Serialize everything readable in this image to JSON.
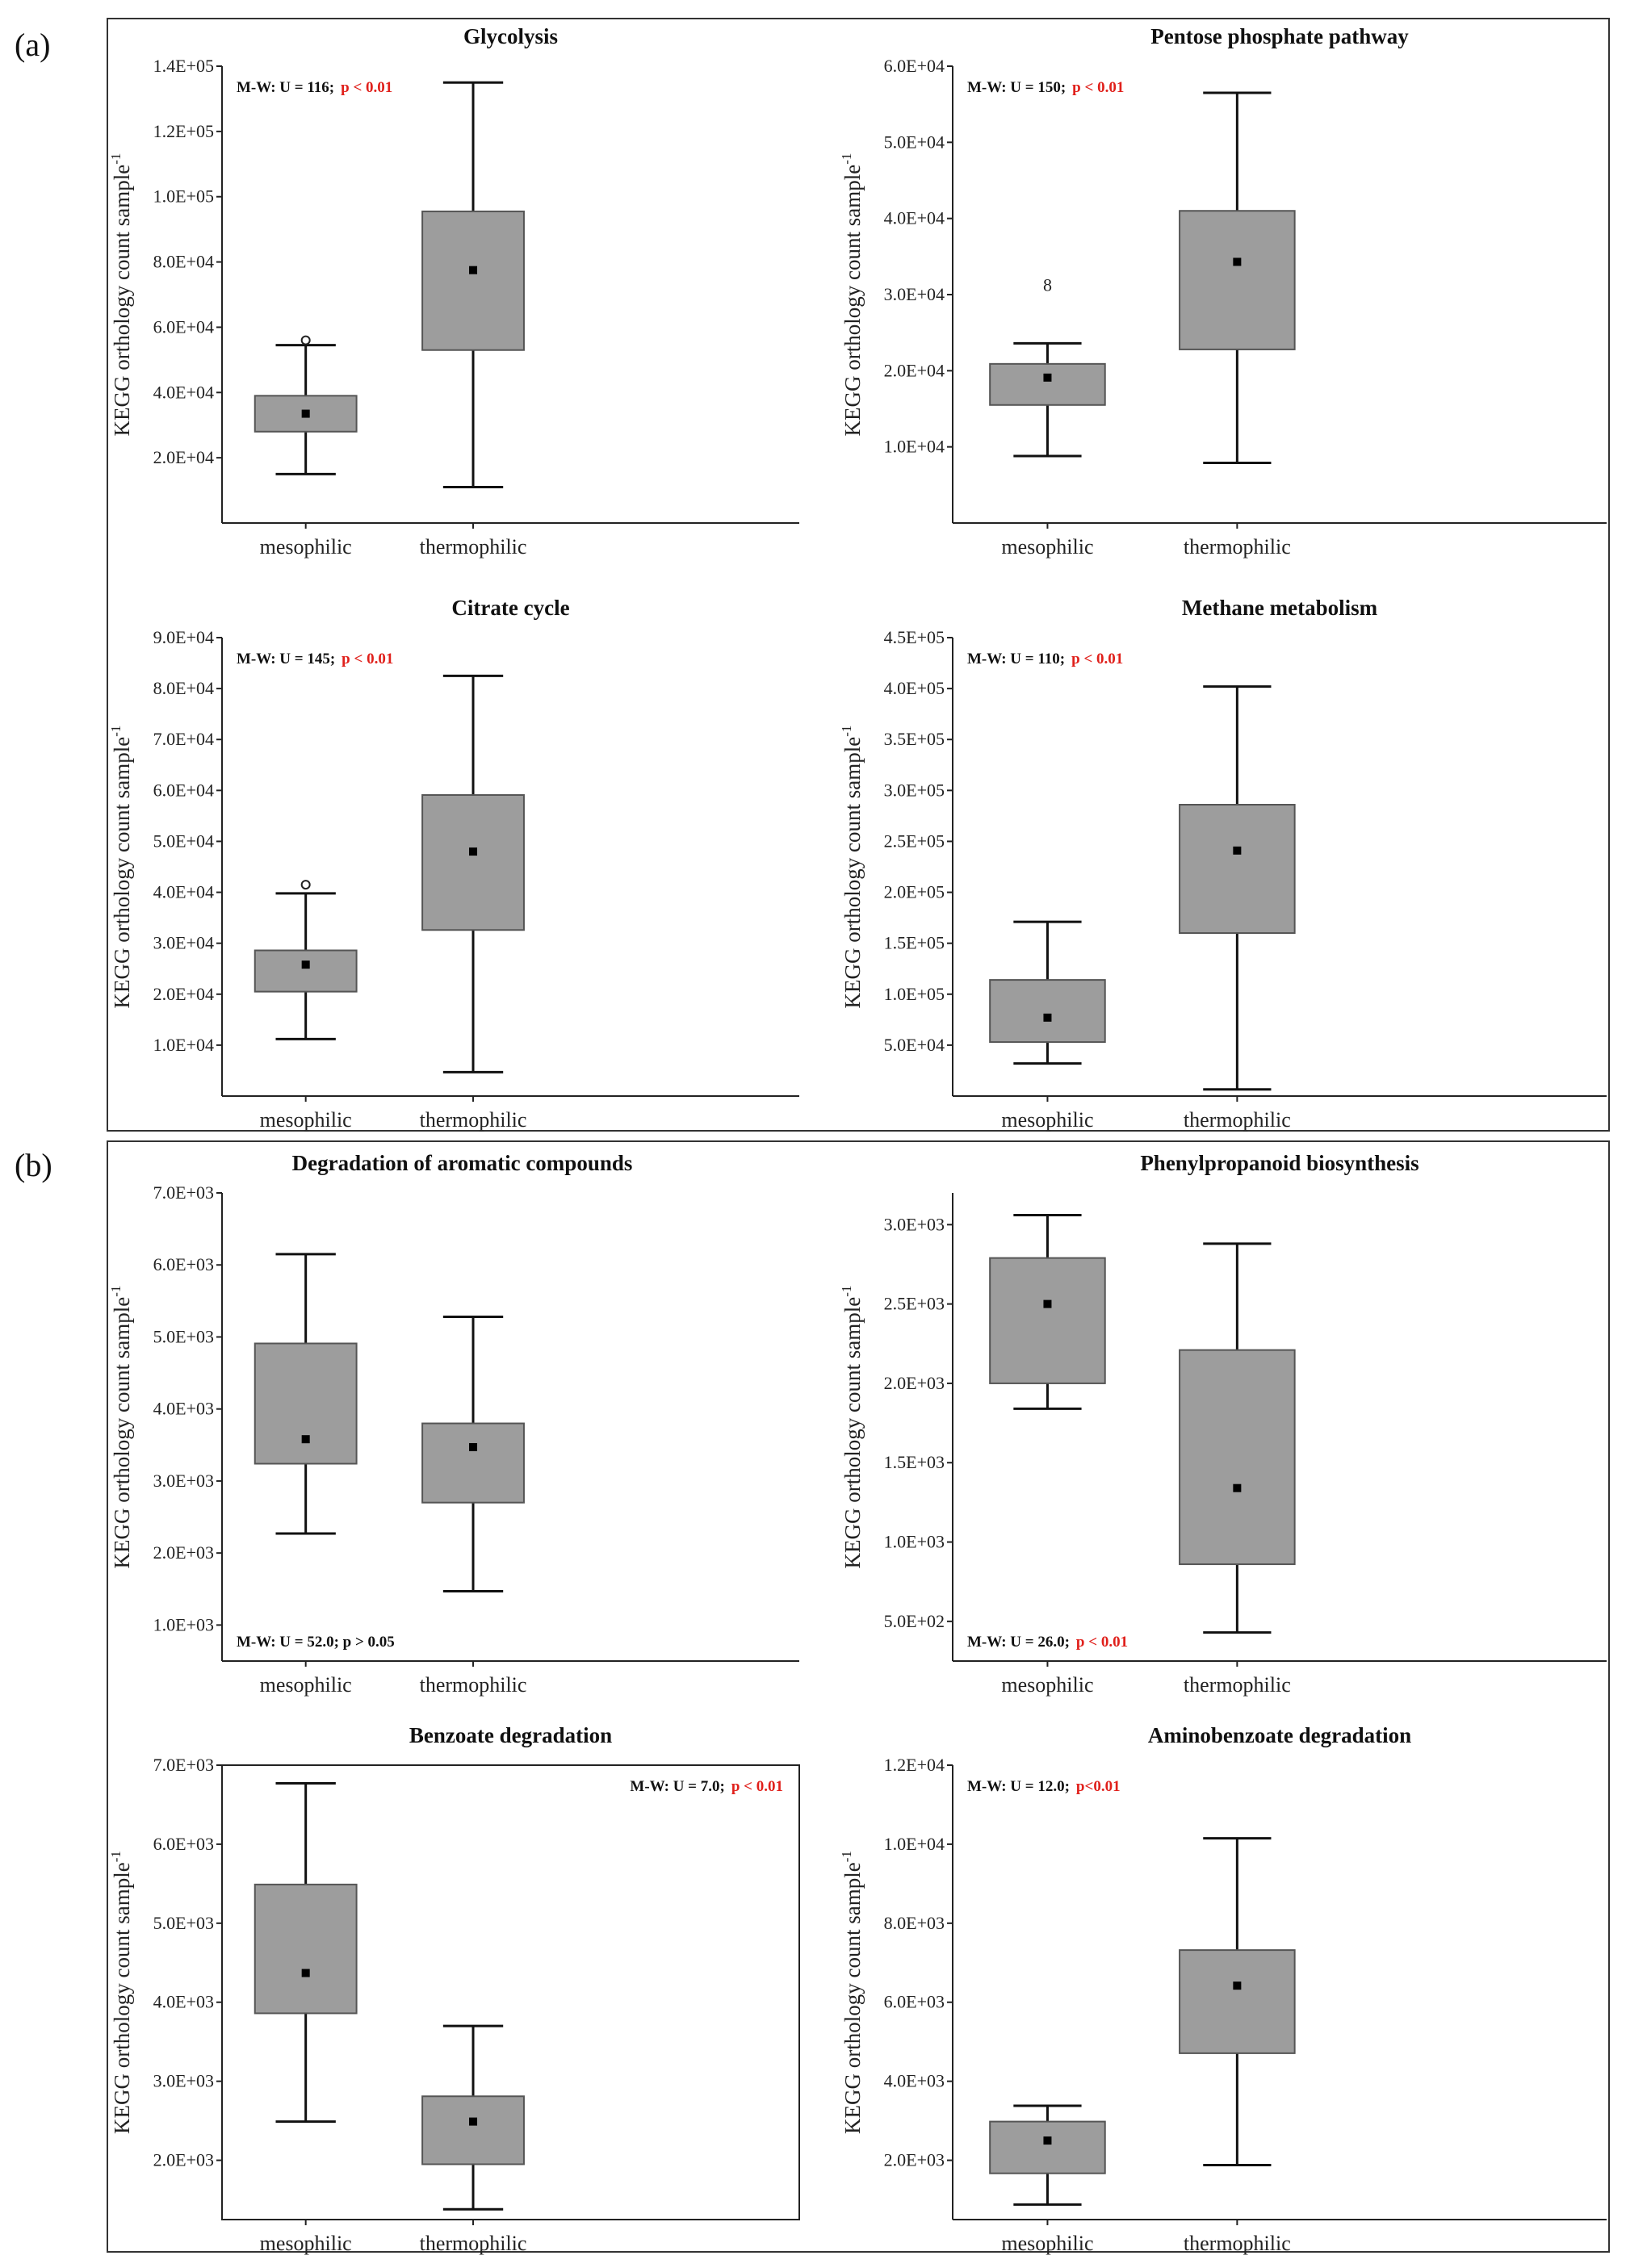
{
  "panel_labels": {
    "a": "(a)",
    "b": "(b)"
  },
  "chart_data": [
    {
      "type": "box",
      "panel": "a",
      "title": "Glycolysis",
      "ylabel": "KEGG orthology count sample",
      "ylabel_sup": "-1",
      "categories": [
        "mesophilic",
        "thermophilic"
      ],
      "ylim": [
        0,
        140000
      ],
      "yticks": [
        20000,
        40000,
        60000,
        80000,
        100000,
        120000,
        140000
      ],
      "ytick_labels": [
        "2.0E+04",
        "4.0E+04",
        "6.0E+04",
        "8.0E+04",
        "1.0E+05",
        "1.2E+05",
        "1.4E+05"
      ],
      "boxes": [
        {
          "min": 15000,
          "q1": 28000,
          "median": 33500,
          "q3": 39000,
          "max": 54500,
          "outliers": [
            56000
          ],
          "outlier_symbol": "o"
        },
        {
          "min": 11000,
          "q1": 53000,
          "median": 77500,
          "q3": 95500,
          "max": 135000,
          "outliers": []
        }
      ],
      "stat": {
        "test": "M-W: U = 116;",
        "p": "p < 0.01",
        "position": "top-left"
      }
    },
    {
      "type": "box",
      "panel": "a",
      "title": "Pentose phosphate pathway",
      "ylabel": "KEGG orthology count sample",
      "ylabel_sup": "-1",
      "categories": [
        "mesophilic",
        "thermophilic"
      ],
      "ylim": [
        0,
        60000
      ],
      "yticks": [
        10000,
        20000,
        30000,
        40000,
        50000,
        60000
      ],
      "ytick_labels": [
        "1.0E+04",
        "2.0E+04",
        "3.0E+04",
        "4.0E+04",
        "5.0E+04",
        "6.0E+04"
      ],
      "boxes": [
        {
          "min": 8800,
          "q1": 15500,
          "median": 19100,
          "q3": 20900,
          "max": 23600,
          "outliers": [
            31300
          ],
          "outlier_symbol": "8"
        },
        {
          "min": 7900,
          "q1": 22800,
          "median": 34300,
          "q3": 41000,
          "max": 56500,
          "outliers": []
        }
      ],
      "stat": {
        "test": "M-W: U =  150;",
        "p": "p < 0.01",
        "position": "top-left"
      }
    },
    {
      "type": "box",
      "panel": "a",
      "title": "Citrate cycle",
      "ylabel": "KEGG orthology count sample",
      "ylabel_sup": "-1",
      "categories": [
        "mesophilic",
        "thermophilic"
      ],
      "ylim": [
        0,
        90000
      ],
      "yticks": [
        10000,
        20000,
        30000,
        40000,
        50000,
        60000,
        70000,
        80000,
        90000
      ],
      "ytick_labels": [
        "1.0E+04",
        "2.0E+04",
        "3.0E+04",
        "4.0E+04",
        "5.0E+04",
        "6.0E+04",
        "7.0E+04",
        "8.0E+04",
        "9.0E+04"
      ],
      "boxes": [
        {
          "min": 11200,
          "q1": 20500,
          "median": 25800,
          "q3": 28600,
          "max": 39800,
          "outliers": [
            41500
          ],
          "outlier_symbol": "o"
        },
        {
          "min": 4700,
          "q1": 32600,
          "median": 48000,
          "q3": 59100,
          "max": 82500,
          "outliers": []
        }
      ],
      "stat": {
        "test": "M-W: U = 145;",
        "p": "p < 0.01",
        "position": "top-left"
      }
    },
    {
      "type": "box",
      "panel": "a",
      "title": "Methane metabolism",
      "ylabel": "KEGG orthology count sample",
      "ylabel_sup": "-1",
      "categories": [
        "mesophilic",
        "thermophilic"
      ],
      "ylim": [
        0,
        450000
      ],
      "yticks": [
        50000,
        100000,
        150000,
        200000,
        250000,
        300000,
        350000,
        400000,
        450000
      ],
      "ytick_labels": [
        "5.0E+04",
        "1.0E+05",
        "1.5E+05",
        "2.0E+05",
        "2.5E+05",
        "3.0E+05",
        "3.5E+05",
        "4.0E+05",
        "4.5E+05"
      ],
      "boxes": [
        {
          "min": 32000,
          "q1": 53000,
          "median": 77000,
          "q3": 114000,
          "max": 171000,
          "outliers": []
        },
        {
          "min": 6500,
          "q1": 160000,
          "median": 241000,
          "q3": 286000,
          "max": 402000,
          "outliers": []
        }
      ],
      "stat": {
        "test": "M-W: U =  110;",
        "p": "p < 0.01",
        "position": "top-left"
      }
    },
    {
      "type": "box",
      "panel": "b",
      "title": "Degradation of aromatic compounds",
      "ylabel": "KEGG orthology count sample",
      "ylabel_sup": "-1",
      "categories": [
        "mesophilic",
        "thermophilic"
      ],
      "ylim": [
        500,
        7000
      ],
      "yticks": [
        1000,
        2000,
        3000,
        4000,
        5000,
        6000,
        7000
      ],
      "ytick_labels": [
        "1.0E+03",
        "2.0E+03",
        "3.0E+03",
        "4.0E+03",
        "5.0E+03",
        "6.0E+03",
        "7.0E+03"
      ],
      "boxes": [
        {
          "min": 2270,
          "q1": 3240,
          "median": 3580,
          "q3": 4910,
          "max": 6150,
          "outliers": []
        },
        {
          "min": 1470,
          "q1": 2700,
          "median": 3470,
          "q3": 3800,
          "max": 5280,
          "outliers": []
        }
      ],
      "stat": {
        "test": "M-W: U = 52.0; p > 0.05",
        "p": "",
        "position": "bottom-left"
      }
    },
    {
      "type": "box",
      "panel": "b",
      "title": "Phenylpropanoid biosynthesis",
      "ylabel": "KEGG orthology count sample",
      "ylabel_sup": "-1",
      "categories": [
        "mesophilic",
        "thermophilic"
      ],
      "ylim": [
        250,
        3200
      ],
      "yticks": [
        500,
        1000,
        1500,
        2000,
        2500,
        3000
      ],
      "ytick_labels": [
        "5.0E+02",
        "1.0E+03",
        "1.5E+03",
        "2.0E+03",
        "2.5E+03",
        "3.0E+03"
      ],
      "boxes": [
        {
          "min": 1840,
          "q1": 2000,
          "median": 2500,
          "q3": 2790,
          "max": 3060,
          "outliers": []
        },
        {
          "min": 430,
          "q1": 860,
          "median": 1340,
          "q3": 2210,
          "max": 2880,
          "outliers": []
        }
      ],
      "stat": {
        "test": "M-W: U = 26.0;",
        "p": "p < 0.01",
        "position": "bottom-left"
      }
    },
    {
      "type": "box",
      "panel": "b",
      "title": "Benzoate degradation",
      "ylabel": "KEGG orthology count sample",
      "ylabel_sup": "-1",
      "categories": [
        "mesophilic",
        "thermophilic"
      ],
      "ylim": [
        1250,
        7000
      ],
      "yticks": [
        2000,
        3000,
        4000,
        5000,
        6000,
        7000
      ],
      "ytick_labels": [
        "2.0E+03",
        "3.0E+03",
        "4.0E+03",
        "5.0E+03",
        "6.0E+03",
        "7.0E+03"
      ],
      "boxes": [
        {
          "min": 2490,
          "q1": 3860,
          "median": 4370,
          "q3": 5490,
          "max": 6770,
          "outliers": []
        },
        {
          "min": 1380,
          "q1": 1950,
          "median": 2490,
          "q3": 2810,
          "max": 3700,
          "outliers": []
        }
      ],
      "stat": {
        "test": "M-W: U = 7.0;",
        "p": "p < 0.01",
        "position": "top-right"
      }
    },
    {
      "type": "box",
      "panel": "b",
      "title": "Aminobenzoate degradation",
      "ylabel": "KEGG orthology count sample",
      "ylabel_sup": "-1",
      "categories": [
        "mesophilic",
        "thermophilic"
      ],
      "ylim": [
        500,
        12000
      ],
      "yticks": [
        2000,
        4000,
        6000,
        8000,
        10000,
        12000
      ],
      "ytick_labels": [
        "2.0E+03",
        "4.0E+03",
        "6.0E+03",
        "8.0E+03",
        "1.0E+04",
        "1.2E+04"
      ],
      "boxes": [
        {
          "min": 880,
          "q1": 1670,
          "median": 2500,
          "q3": 2980,
          "max": 3380,
          "outliers": []
        },
        {
          "min": 1880,
          "q1": 4710,
          "median": 6420,
          "q3": 7320,
          "max": 10150,
          "outliers": []
        }
      ],
      "stat": {
        "test": "M-W: U = 12.0;",
        "p": "p<0.01",
        "position": "top-left"
      }
    }
  ],
  "colors": {
    "box_fill": "#9d9d9d",
    "box_stroke": "#555555",
    "axis": "#222222",
    "significant": "#e0201b",
    "text": "#111111"
  }
}
